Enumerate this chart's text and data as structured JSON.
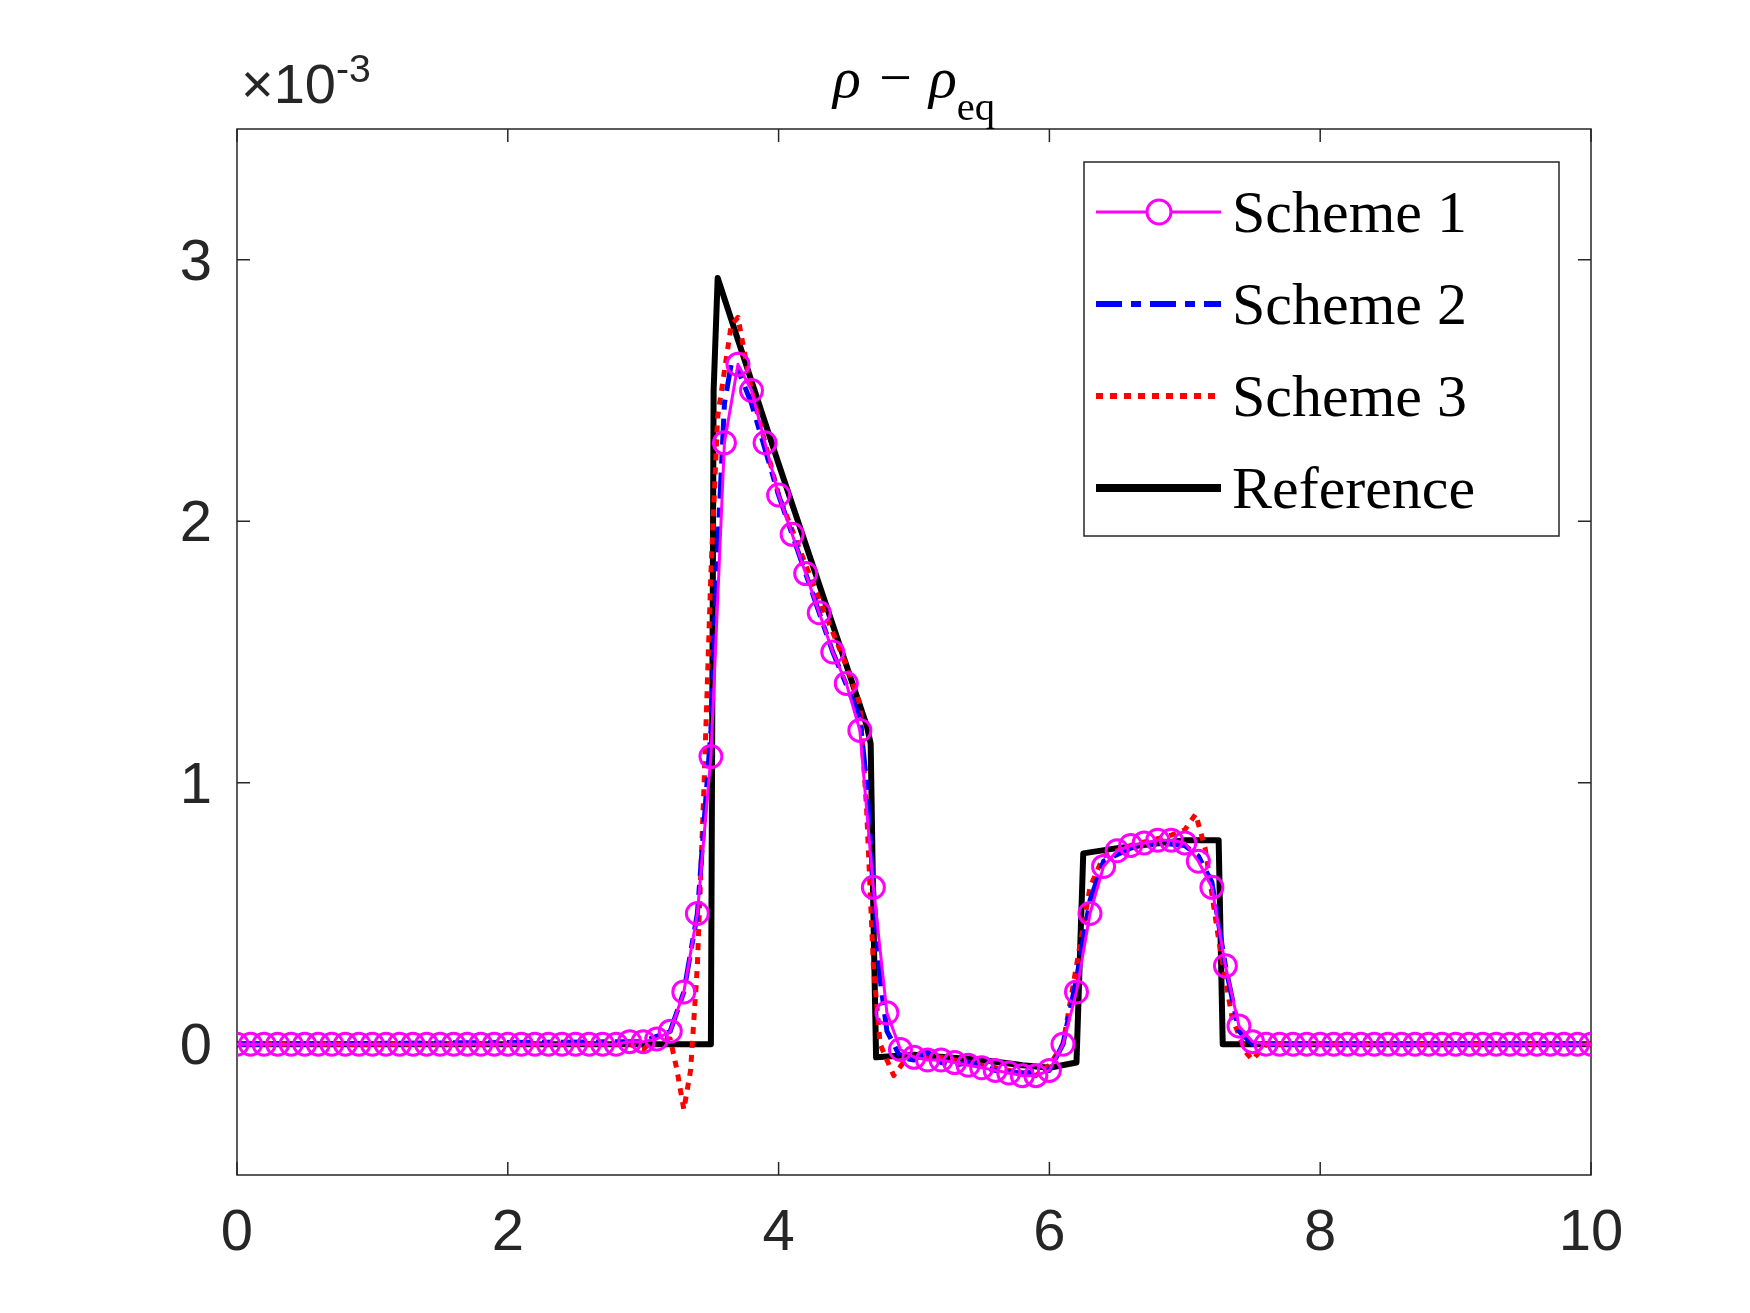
{
  "chart_data": {
    "type": "line",
    "title": "ρ − ρ$_{eq}$",
    "annotations": [
      "×10$^{-3}$"
    ],
    "xlim": [
      0,
      10
    ],
    "ylim": [
      -0.5,
      3.5
    ],
    "xticks": [
      0,
      2,
      4,
      6,
      8,
      10
    ],
    "yticks": [
      0,
      1,
      2,
      3
    ],
    "grid": false,
    "legend": "top right",
    "series": [
      {
        "name": "Scheme 1",
        "color": "#ff00ff",
        "line_style": "solid",
        "marker": "circle",
        "x": [
          0,
          0.1,
          0.2,
          0.3,
          0.4,
          0.5,
          0.6,
          0.7,
          0.8,
          0.9,
          1,
          1.1,
          1.2,
          1.3,
          1.4,
          1.5,
          1.6,
          1.7,
          1.8,
          1.9,
          2,
          2.1,
          2.2,
          2.3,
          2.4,
          2.5,
          2.6,
          2.7,
          2.8,
          2.9,
          3,
          3.1,
          3.2,
          3.3,
          3.4,
          3.5,
          3.6,
          3.7,
          3.8,
          3.9,
          4,
          4.1,
          4.2,
          4.3,
          4.4,
          4.5,
          4.6,
          4.7,
          4.8,
          4.9,
          5,
          5.1,
          5.2,
          5.3,
          5.4,
          5.5,
          5.6,
          5.7,
          5.8,
          5.9,
          6,
          6.1,
          6.2,
          6.3,
          6.4,
          6.5,
          6.6,
          6.7,
          6.8,
          6.9,
          7,
          7.1,
          7.2,
          7.3,
          7.4,
          7.5,
          7.6,
          7.7,
          7.8,
          7.9,
          8,
          8.1,
          8.2,
          8.3,
          8.4,
          8.5,
          8.6,
          8.7,
          8.8,
          8.9,
          9,
          9.1,
          9.2,
          9.3,
          9.4,
          9.5,
          9.6,
          9.7,
          9.8,
          9.9,
          10
        ],
        "values": [
          0,
          0,
          0,
          0,
          0,
          0,
          0,
          0,
          0,
          0,
          0,
          0,
          0,
          0,
          0,
          0,
          0,
          0,
          0,
          0,
          0,
          0,
          0,
          0,
          0,
          0,
          0,
          0,
          0,
          0.01,
          0.01,
          0.02,
          0.05,
          0.2,
          0.5,
          1.1,
          2.3,
          2.6,
          2.5,
          2.3,
          2.1,
          1.95,
          1.8,
          1.65,
          1.5,
          1.38,
          1.2,
          0.6,
          0.12,
          -0.02,
          -0.05,
          -0.06,
          -0.06,
          -0.07,
          -0.08,
          -0.09,
          -0.1,
          -0.11,
          -0.12,
          -0.12,
          -0.1,
          0,
          0.2,
          0.5,
          0.68,
          0.74,
          0.76,
          0.77,
          0.78,
          0.78,
          0.77,
          0.7,
          0.6,
          0.3,
          0.07,
          0.01,
          0,
          0,
          0,
          0,
          0,
          0,
          0,
          0,
          0,
          0,
          0,
          0,
          0,
          0,
          0,
          0,
          0,
          0,
          0,
          0,
          0,
          0,
          0,
          0,
          0
        ]
      },
      {
        "name": "Scheme 2",
        "color": "#0000ff",
        "line_style": "dashdot",
        "marker": "none",
        "x": [
          0,
          3.0,
          3.2,
          3.3,
          3.4,
          3.5,
          3.55,
          3.6,
          3.65,
          3.7,
          3.8,
          4.0,
          4.2,
          4.4,
          4.6,
          4.65,
          4.7,
          4.75,
          4.8,
          4.9,
          5.0,
          5.1,
          5.2,
          5.3,
          5.4,
          5.6,
          5.8,
          6.0,
          6.1,
          6.2,
          6.3,
          6.4,
          6.6,
          6.8,
          7.0,
          7.1,
          7.2,
          7.3,
          7.4,
          7.5,
          10
        ],
        "values": [
          0,
          0.01,
          0.05,
          0.2,
          0.5,
          1.2,
          1.9,
          2.45,
          2.6,
          2.58,
          2.45,
          2.1,
          1.8,
          1.5,
          1.25,
          1.0,
          0.6,
          0.25,
          0.05,
          -0.05,
          -0.06,
          -0.03,
          -0.07,
          -0.08,
          -0.07,
          -0.1,
          -0.11,
          -0.1,
          0,
          0.25,
          0.55,
          0.7,
          0.75,
          0.77,
          0.76,
          0.72,
          0.62,
          0.3,
          0.05,
          0,
          0
        ]
      },
      {
        "name": "Scheme 3",
        "color": "#ff0000",
        "line_style": "dotted",
        "marker": "none",
        "x": [
          0,
          2.9,
          3.0,
          3.1,
          3.2,
          3.25,
          3.3,
          3.35,
          3.4,
          3.45,
          3.5,
          3.55,
          3.65,
          3.7,
          3.8,
          4.0,
          4.3,
          4.5,
          4.6,
          4.65,
          4.7,
          4.75,
          4.85,
          4.95,
          5.2,
          5.6,
          5.9,
          6.0,
          6.1,
          6.2,
          6.3,
          6.4,
          6.6,
          6.9,
          7.0,
          7.08,
          7.15,
          7.25,
          7.35,
          7.45,
          7.5,
          7.6,
          10
        ],
        "values": [
          0,
          0,
          -0.02,
          0.03,
          0.02,
          -0.1,
          -0.25,
          -0.1,
          0.3,
          1.0,
          1.8,
          2.4,
          2.75,
          2.78,
          2.5,
          2.1,
          1.7,
          1.45,
          1.3,
          0.9,
          0.3,
          0,
          -0.12,
          -0.05,
          -0.05,
          -0.09,
          -0.12,
          -0.08,
          0,
          0.3,
          0.6,
          0.72,
          0.76,
          0.8,
          0.82,
          0.88,
          0.75,
          0.4,
          0.1,
          -0.03,
          -0.06,
          0,
          0
        ]
      },
      {
        "name": "Reference",
        "color": "#000000",
        "line_style": "solid",
        "marker": "none",
        "x": [
          0,
          3.5,
          3.52,
          3.55,
          4.0,
          4.5,
          4.65,
          4.68,
          4.7,
          4.72,
          5.0,
          5.5,
          5.8,
          6.0,
          6.2,
          6.25,
          6.5,
          7.0,
          7.25,
          7.28,
          10
        ],
        "values": [
          0,
          0,
          2.5,
          2.93,
          2.22,
          1.45,
          1.22,
          1.15,
          0.5,
          -0.05,
          -0.04,
          -0.06,
          -0.08,
          -0.09,
          -0.07,
          0.73,
          0.75,
          0.78,
          0.78,
          0,
          0
        ]
      }
    ]
  }
}
